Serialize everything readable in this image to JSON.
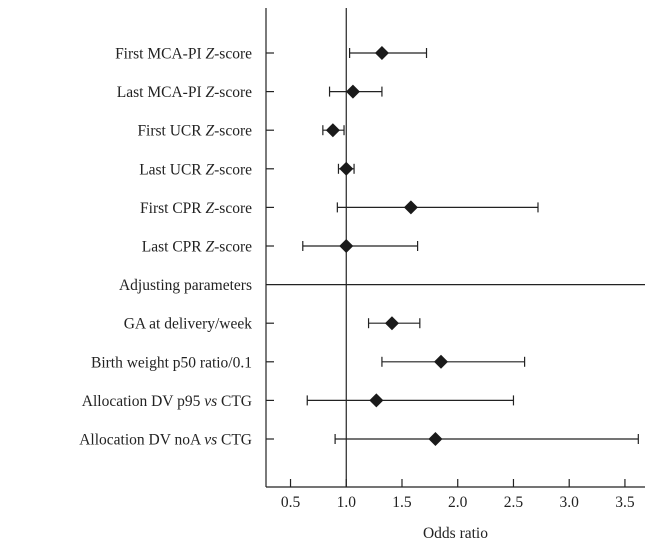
{
  "chart_data": {
    "type": "forest",
    "xlabel": "Odds ratio",
    "xlim": [
      0.28,
      3.68
    ],
    "reference_value": 1.0,
    "xticks": [
      0.5,
      1.0,
      1.5,
      2.0,
      2.5,
      3.0,
      3.5
    ],
    "xtick_labels": [
      "0.5",
      "1.0",
      "1.5",
      "2.0",
      "2.5",
      "3.0",
      "3.5"
    ],
    "marker_color": "#1a1a1a",
    "rows": [
      {
        "label": "First MCA-PI Z-score",
        "label_pre": "First MCA-PI ",
        "label_em": "Z",
        "label_post": "-score",
        "or": 1.32,
        "lo": 1.03,
        "hi": 1.72
      },
      {
        "label": "Last MCA-PI Z-score",
        "label_pre": "Last MCA-PI ",
        "label_em": "Z",
        "label_post": "-score",
        "or": 1.06,
        "lo": 0.85,
        "hi": 1.32
      },
      {
        "label": "First UCR Z-score",
        "label_pre": "First UCR ",
        "label_em": "Z",
        "label_post": "-score",
        "or": 0.88,
        "lo": 0.79,
        "hi": 0.98
      },
      {
        "label": "Last UCR Z-score",
        "label_pre": "Last UCR ",
        "label_em": "Z",
        "label_post": "-score",
        "or": 1.0,
        "lo": 0.93,
        "hi": 1.07
      },
      {
        "label": "First CPR Z-score",
        "label_pre": "First CPR ",
        "label_em": "Z",
        "label_post": "-score",
        "or": 1.58,
        "lo": 0.92,
        "hi": 2.72
      },
      {
        "label": "Last CPR Z-score",
        "label_pre": "Last CPR ",
        "label_em": "Z",
        "label_post": "-score",
        "or": 1.0,
        "lo": 0.61,
        "hi": 1.64
      },
      {
        "label": "Adjusting parameters",
        "label_pre": "Adjusting parameters",
        "label_em": "",
        "label_post": "",
        "divider": true
      },
      {
        "label": "GA at delivery/week",
        "label_pre": "GA at delivery/week",
        "label_em": "",
        "label_post": "",
        "or": 1.41,
        "lo": 1.2,
        "hi": 1.66
      },
      {
        "label": "Birth weight p50 ratio/0.1",
        "label_pre": "Birth weight p50 ratio/0.1",
        "label_em": "",
        "label_post": "",
        "or": 1.85,
        "lo": 1.32,
        "hi": 2.6
      },
      {
        "label": "Allocation DV p95 vs CTG",
        "label_pre": "Allocation DV p95 ",
        "label_em": "vs",
        "label_post": " CTG",
        "or": 1.27,
        "lo": 0.65,
        "hi": 2.5
      },
      {
        "label": "Allocation DV noA vs CTG",
        "label_pre": "Allocation DV noA ",
        "label_em": "vs",
        "label_post": " CTG",
        "or": 1.8,
        "lo": 0.9,
        "hi": 3.62
      }
    ]
  }
}
